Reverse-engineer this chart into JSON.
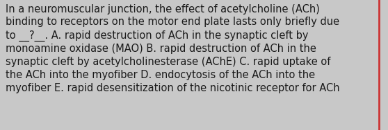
{
  "text": "In a neuromuscular junction, the effect of acetylcholine (ACh)\nbinding to receptors on the motor end plate lasts only briefly due\nto __?__. A. rapid destruction of ACh in the synaptic cleft by\nmonoamine oxidase (MAO) B. rapid destruction of ACh in the\nsynaptic cleft by acetylcholinesterase (AChE) C. rapid uptake of\nthe ACh into the myofiber D. endocytosis of the ACh into the\nmyofiber E. rapid desensitization of the nicotinic receptor for ACh",
  "background_color": "#c8c8c8",
  "text_color": "#1a1a1a",
  "font_size": 10.5,
  "border_color": "#cc3333",
  "border_width": 2.0,
  "fig_width": 5.58,
  "fig_height": 1.88,
  "dpi": 100
}
